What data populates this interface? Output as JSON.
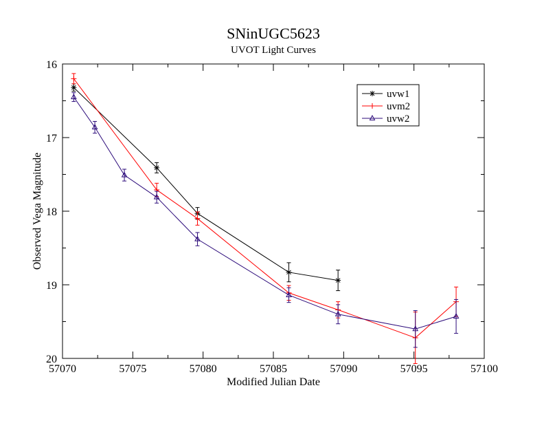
{
  "chart_data": {
    "type": "line",
    "title": "SNinUGC5623",
    "subtitle": "UVOT Light Curves",
    "xlabel": "Modified Julian Date",
    "ylabel": "Observed Vega Magnitude",
    "xlim": [
      57070,
      57100
    ],
    "ylim": [
      16,
      20
    ],
    "y_inverted": true,
    "x_ticks": [
      57070,
      57075,
      57080,
      57085,
      57090,
      57095,
      57100
    ],
    "x_tick_labels": [
      "57070",
      "57075",
      "57080",
      "57085",
      "57090",
      "57095",
      "57100"
    ],
    "y_ticks": [
      16,
      17,
      18,
      19,
      20
    ],
    "y_tick_labels": [
      "16",
      "17",
      "18",
      "19",
      "20"
    ],
    "legend_position": "top-right",
    "grid": false,
    "series": [
      {
        "name": "uvw1",
        "color": "#000000",
        "marker": "star",
        "x": [
          57070.8,
          57076.7,
          57079.6,
          57086.1,
          57089.6
        ],
        "y": [
          16.32,
          17.41,
          18.03,
          18.83,
          18.94
        ],
        "err": [
          0.05,
          0.07,
          0.08,
          0.13,
          0.14
        ]
      },
      {
        "name": "uvm2",
        "color": "#ff0000",
        "marker": "plus",
        "x": [
          57070.8,
          57076.7,
          57079.6,
          57086.1,
          57089.6,
          57095.1,
          57098.0
        ],
        "y": [
          16.2,
          17.71,
          18.1,
          19.11,
          19.34,
          19.72,
          19.23
        ],
        "err": [
          0.07,
          0.09,
          0.09,
          0.1,
          0.11,
          0.35,
          0.2
        ]
      },
      {
        "name": "uvw2",
        "color": "#2b0a7a",
        "marker": "triangle",
        "x": [
          57070.8,
          57072.3,
          57074.4,
          57076.7,
          57079.6,
          57086.1,
          57089.6,
          57095.1,
          57098.0
        ],
        "y": [
          16.45,
          16.86,
          17.51,
          17.81,
          18.38,
          19.14,
          19.4,
          19.6,
          19.43
        ],
        "err": [
          0.06,
          0.08,
          0.08,
          0.08,
          0.09,
          0.1,
          0.13,
          0.25,
          0.23
        ]
      }
    ]
  }
}
